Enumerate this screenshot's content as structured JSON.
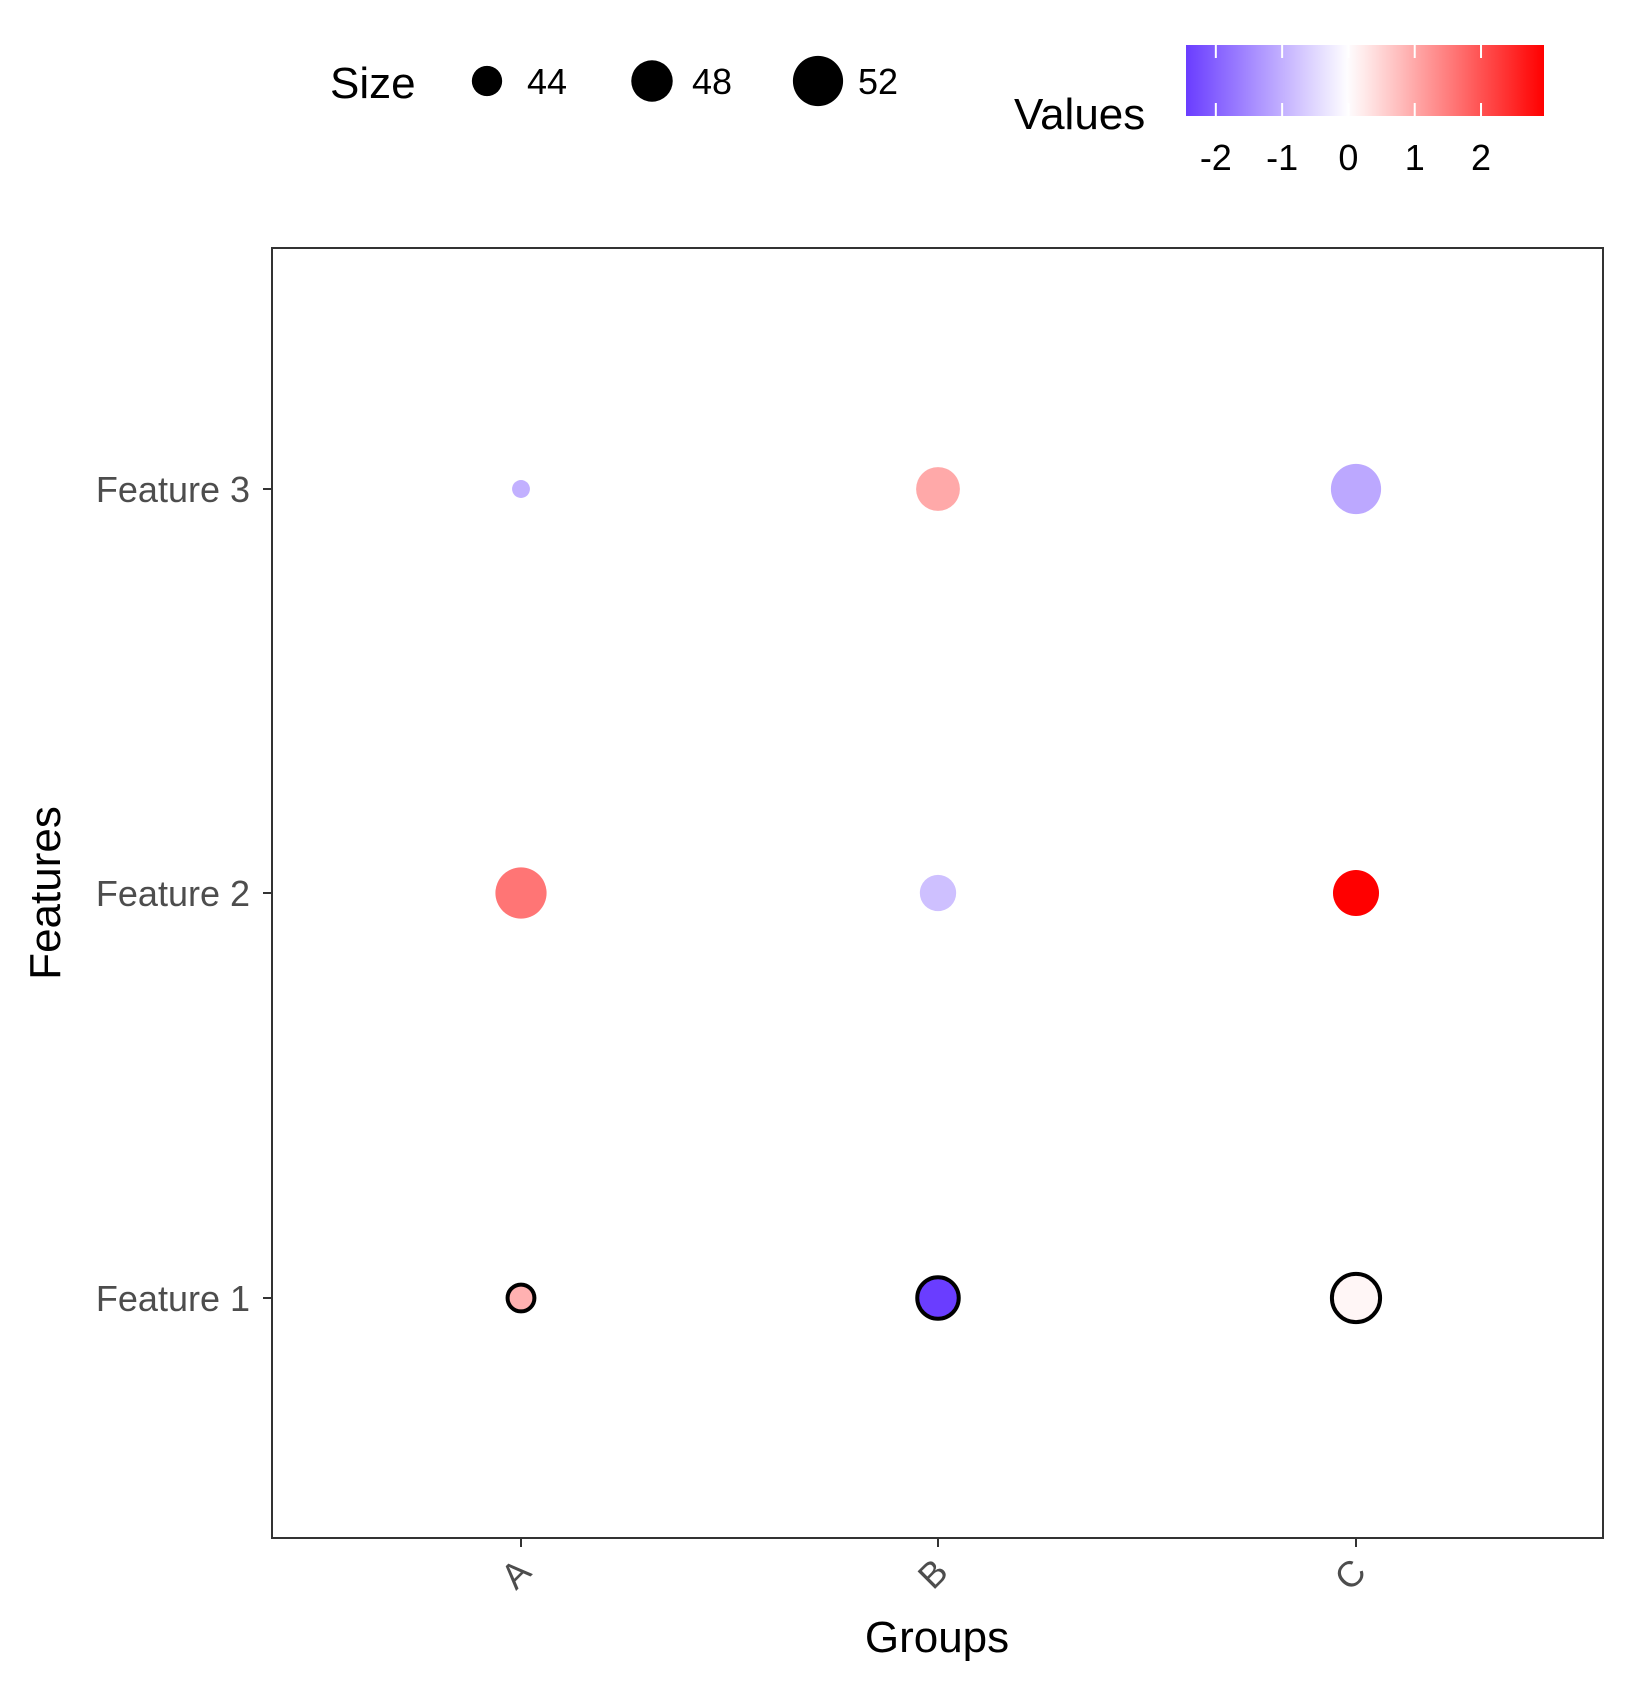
{
  "chart_data": {
    "type": "scatter",
    "subtype": "dot-plot",
    "xlabel": "Groups",
    "ylabel": "Features",
    "x_categories": [
      "A",
      "B",
      "C"
    ],
    "y_categories": [
      "Feature 1",
      "Feature 2",
      "Feature 3"
    ],
    "x_tick_rotation_deg": 45,
    "grid": false,
    "panel_border": true,
    "points": [
      {
        "x": "A",
        "y": "Feature 1",
        "size": 43,
        "value": 0.9,
        "outlined": true
      },
      {
        "x": "B",
        "y": "Feature 1",
        "size": 48,
        "value": -2.5,
        "outlined": true
      },
      {
        "x": "C",
        "y": "Feature 1",
        "size": 51,
        "value": 0.1,
        "outlined": true
      },
      {
        "x": "A",
        "y": "Feature 2",
        "size": 52.5,
        "value": 1.6,
        "outlined": false
      },
      {
        "x": "B",
        "y": "Feature 2",
        "size": 46,
        "value": -0.8,
        "outlined": false
      },
      {
        "x": "C",
        "y": "Feature 2",
        "size": 50,
        "value": 3.0,
        "outlined": false
      },
      {
        "x": "A",
        "y": "Feature 3",
        "size": 41,
        "value": -1.0,
        "outlined": false
      },
      {
        "x": "B",
        "y": "Feature 3",
        "size": 49,
        "value": 1.0,
        "outlined": false
      },
      {
        "x": "C",
        "y": "Feature 3",
        "size": 52,
        "value": -1.1,
        "outlined": false
      }
    ],
    "size_legend": {
      "title": "Size",
      "breaks": [
        44,
        48,
        52
      ],
      "labels": [
        "44",
        "48",
        "52"
      ]
    },
    "color_legend": {
      "title": "Values",
      "breaks": [
        -2,
        -1,
        0,
        1,
        2
      ],
      "labels": [
        "-2",
        "-1",
        "0",
        "1",
        "2"
      ],
      "limits": [
        -2.45,
        2.95
      ],
      "low_color": "#6a3dff",
      "mid_color": "#ffffff",
      "high_color": "#ff0000",
      "midpoint": 0
    },
    "legend_position": "top"
  }
}
